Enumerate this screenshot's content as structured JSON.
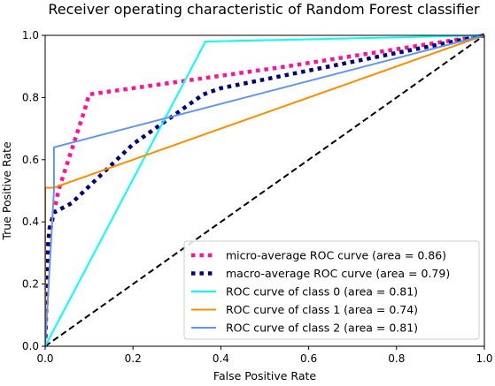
{
  "chart_data": {
    "type": "line",
    "title": "Receiver operating characteristic of Random Forest classifier",
    "xlabel": "False Positive Rate",
    "ylabel": "True Positive Rate",
    "xlim": [
      0.0,
      1.0
    ],
    "ylim": [
      0.0,
      1.0
    ],
    "xticks": [
      0.0,
      0.2,
      0.4,
      0.6,
      0.8,
      1.0
    ],
    "yticks": [
      0.0,
      0.2,
      0.4,
      0.6,
      0.8,
      1.0
    ],
    "xtick_labels": [
      "0.0",
      "0.2",
      "0.4",
      "0.6",
      "0.8",
      "1.0"
    ],
    "ytick_labels": [
      "0.0",
      "0.2",
      "0.4",
      "0.6",
      "0.8",
      "1.0"
    ],
    "grid": false,
    "legend_position": "lower-right",
    "series": [
      {
        "name": "micro-average ROC curve (area = 0.86)",
        "color": "#ff1493",
        "style": "dotted",
        "width": 4.5,
        "x": [
          0.0,
          0.005,
          0.01,
          0.03,
          0.09,
          0.1,
          0.55,
          1.0
        ],
        "y": [
          0.0,
          0.2,
          0.36,
          0.5,
          0.76,
          0.81,
          0.9,
          1.0
        ]
      },
      {
        "name": "macro-average ROC curve (area = 0.79)",
        "color": "#000080",
        "style": "dotted",
        "width": 4.5,
        "x": [
          0.0,
          0.005,
          0.01,
          0.02,
          0.06,
          0.2,
          0.36,
          0.4,
          1.0
        ],
        "y": [
          0.0,
          0.3,
          0.38,
          0.43,
          0.46,
          0.65,
          0.81,
          0.83,
          1.0
        ]
      },
      {
        "name": "ROC curve of class 0 (area = 0.81)",
        "color": "#00ffff",
        "style": "solid",
        "width": 2,
        "x": [
          0.0,
          0.365,
          1.0
        ],
        "y": [
          0.0,
          0.98,
          1.0
        ]
      },
      {
        "name": "ROC curve of class 1 (area = 0.74)",
        "color": "#ff8c00",
        "style": "solid",
        "width": 2,
        "x": [
          0.0,
          0.0,
          0.02,
          1.0
        ],
        "y": [
          0.0,
          0.51,
          0.51,
          1.0
        ]
      },
      {
        "name": "ROC curve of class 2 (area = 0.81)",
        "color": "#6495ed",
        "style": "solid",
        "width": 2,
        "x": [
          0.0,
          0.02,
          0.02,
          1.0
        ],
        "y": [
          0.0,
          0.5,
          0.64,
          1.0
        ]
      }
    ],
    "reference_line": {
      "color": "#000000",
      "style": "dashed",
      "x": [
        0.0,
        1.0
      ],
      "y": [
        0.0,
        1.0
      ]
    }
  }
}
